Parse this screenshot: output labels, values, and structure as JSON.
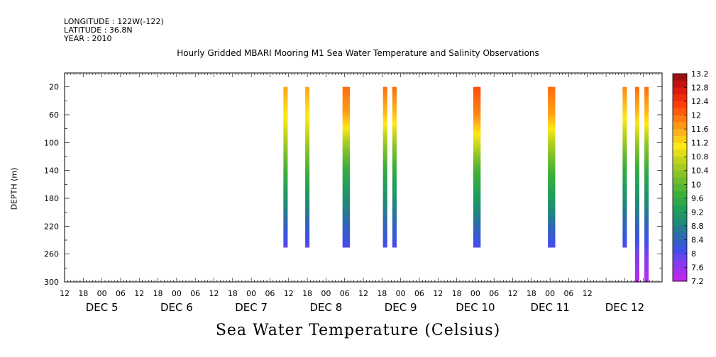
{
  "header": {
    "longitude": "LONGITUDE : 122W(-122)",
    "latitude": "LATITUDE : 36.8N",
    "year": "YEAR : 2010"
  },
  "chart_data": {
    "type": "heatmap",
    "title": "Hourly Gridded MBARI Mooring M1 Sea Water Temperature and Salinity Observations",
    "ylabel": "DEPTH (m)",
    "colorbar_label": "Sea Water Temperature (Celsius)",
    "xlim_hours": [
      -12,
      180
    ],
    "ylim": [
      300,
      0
    ],
    "y_ticks": [
      20,
      60,
      100,
      140,
      180,
      220,
      260,
      300
    ],
    "y_reversed": true,
    "x_hour_ticks": [
      12,
      18,
      0,
      6,
      12,
      18,
      0,
      6,
      12,
      18,
      0,
      6,
      12,
      18,
      0,
      6,
      12,
      18,
      0,
      6,
      12,
      18,
      0,
      6,
      12,
      18,
      0,
      6,
      12
    ],
    "x_day_labels": [
      {
        "text": "DEC  5",
        "hour": 0
      },
      {
        "text": "DEC  6",
        "hour": 24
      },
      {
        "text": "DEC  7",
        "hour": 48
      },
      {
        "text": "DEC  8",
        "hour": 72
      },
      {
        "text": "DEC  9",
        "hour": 96
      },
      {
        "text": "DEC 10",
        "hour": 120
      },
      {
        "text": "DEC 11",
        "hour": 144
      },
      {
        "text": "DEC 12",
        "hour": 168
      }
    ],
    "colorbar": {
      "min": 7.2,
      "max": 13.2,
      "step": 0.2,
      "labels": [
        "13.2",
        "12.8",
        "12.4",
        "12",
        "11.6",
        "11.2",
        "10.8",
        "10.4",
        "10",
        "9.6",
        "9.2",
        "8.8",
        "8.4",
        "8",
        "7.6",
        "7.2"
      ]
    },
    "profiles": [
      {
        "hour": 59,
        "depth_max": 250,
        "values": [
          [
            20,
            11.6
          ],
          [
            70,
            11.0
          ],
          [
            110,
            10.3
          ],
          [
            150,
            9.6
          ],
          [
            190,
            8.9
          ],
          [
            230,
            8.2
          ],
          [
            250,
            7.9
          ]
        ]
      },
      {
        "hour": 66,
        "depth_max": 250,
        "values": [
          [
            20,
            11.6
          ],
          [
            70,
            11.0
          ],
          [
            110,
            10.3
          ],
          [
            150,
            9.6
          ],
          [
            190,
            8.9
          ],
          [
            230,
            8.2
          ],
          [
            250,
            7.9
          ]
        ]
      },
      {
        "hour": 78,
        "depth_max": 250,
        "values": [
          [
            20,
            12.0
          ],
          [
            60,
            11.6
          ],
          [
            100,
            10.5
          ],
          [
            140,
            9.6
          ],
          [
            180,
            9.0
          ],
          [
            220,
            8.4
          ],
          [
            250,
            8.0
          ]
        ]
      },
      {
        "hour": 79,
        "depth_max": 250,
        "values": [
          [
            20,
            12.0
          ],
          [
            60,
            11.6
          ],
          [
            100,
            10.5
          ],
          [
            140,
            9.6
          ],
          [
            180,
            9.0
          ],
          [
            220,
            8.4
          ],
          [
            250,
            8.0
          ]
        ]
      },
      {
        "hour": 91,
        "depth_max": 250,
        "values": [
          [
            20,
            12.0
          ],
          [
            60,
            11.4
          ],
          [
            100,
            10.4
          ],
          [
            140,
            9.6
          ],
          [
            180,
            9.0
          ],
          [
            220,
            8.4
          ],
          [
            250,
            8.0
          ]
        ]
      },
      {
        "hour": 94,
        "depth_max": 250,
        "values": [
          [
            20,
            12.0
          ],
          [
            60,
            11.4
          ],
          [
            100,
            10.4
          ],
          [
            140,
            9.6
          ],
          [
            180,
            9.0
          ],
          [
            220,
            8.4
          ],
          [
            250,
            8.0
          ]
        ]
      },
      {
        "hour": 120,
        "depth_max": 250,
        "values": [
          [
            20,
            12.2
          ],
          [
            60,
            11.8
          ],
          [
            100,
            10.8
          ],
          [
            140,
            9.8
          ],
          [
            180,
            9.2
          ],
          [
            220,
            8.5
          ],
          [
            250,
            8.0
          ]
        ]
      },
      {
        "hour": 121,
        "depth_max": 250,
        "values": [
          [
            20,
            12.2
          ],
          [
            60,
            11.8
          ],
          [
            100,
            10.8
          ],
          [
            140,
            9.8
          ],
          [
            180,
            9.2
          ],
          [
            220,
            8.5
          ],
          [
            250,
            8.0
          ]
        ]
      },
      {
        "hour": 144,
        "depth_max": 250,
        "values": [
          [
            20,
            12.0
          ],
          [
            60,
            11.6
          ],
          [
            100,
            10.6
          ],
          [
            140,
            9.8
          ],
          [
            180,
            9.2
          ],
          [
            220,
            8.5
          ],
          [
            250,
            8.0
          ]
        ]
      },
      {
        "hour": 145,
        "depth_max": 250,
        "values": [
          [
            20,
            12.0
          ],
          [
            60,
            11.6
          ],
          [
            100,
            10.6
          ],
          [
            140,
            9.8
          ],
          [
            180,
            9.2
          ],
          [
            220,
            8.5
          ],
          [
            250,
            8.0
          ]
        ]
      },
      {
        "hour": 168,
        "depth_max": 250,
        "values": [
          [
            20,
            11.8
          ],
          [
            60,
            11.2
          ],
          [
            100,
            10.4
          ],
          [
            140,
            9.6
          ],
          [
            180,
            9.0
          ],
          [
            220,
            8.4
          ],
          [
            250,
            8.0
          ]
        ]
      },
      {
        "hour": 172,
        "depth_max": 300,
        "values": [
          [
            20,
            12.0
          ],
          [
            60,
            11.4
          ],
          [
            100,
            10.4
          ],
          [
            140,
            9.6
          ],
          [
            180,
            9.0
          ],
          [
            220,
            8.4
          ],
          [
            260,
            7.8
          ],
          [
            300,
            7.3
          ]
        ]
      },
      {
        "hour": 175,
        "depth_max": 300,
        "values": [
          [
            20,
            12.0
          ],
          [
            60,
            11.4
          ],
          [
            100,
            10.4
          ],
          [
            140,
            9.6
          ],
          [
            180,
            9.0
          ],
          [
            220,
            8.4
          ],
          [
            260,
            7.8
          ],
          [
            300,
            7.3
          ]
        ]
      }
    ]
  }
}
